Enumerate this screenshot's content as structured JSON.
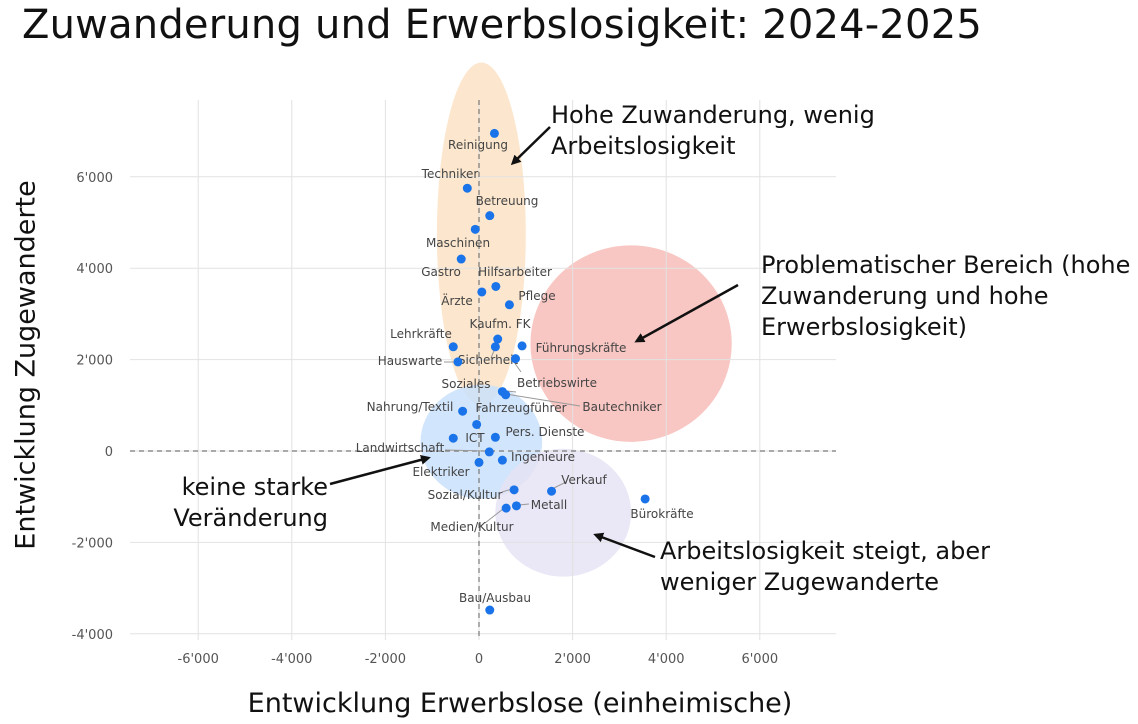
{
  "chart_data": {
    "type": "scatter",
    "title": "Zuwanderung und Erwerbslosigkeit: 2024-2025",
    "xlabel": "Entwicklung Erwerbslose (einheimische)",
    "ylabel": "Entwicklung Zugewanderte",
    "xlim": [
      -7500,
      7500
    ],
    "ylim": [
      -4300,
      7500
    ],
    "x_ticks": [
      -6000,
      -4000,
      -2000,
      0,
      2000,
      4000,
      6000
    ],
    "x_tick_labels": [
      "-6'000",
      "-4'000",
      "-2'000",
      "0",
      "2'000",
      "4'000",
      "6'000"
    ],
    "y_ticks": [
      -4000,
      -2000,
      0,
      2000,
      4000,
      6000
    ],
    "y_tick_labels": [
      "-4'000",
      "-2'000",
      "0",
      "2'000",
      "4'000",
      "6'000"
    ],
    "grid": true,
    "point_color": "#1a73e8",
    "points": [
      {
        "label": "Reinigung",
        "x": 330,
        "y": 6950
      },
      {
        "label": "Techniker",
        "x": -250,
        "y": 5750
      },
      {
        "label": "Betreuung",
        "x": 230,
        "y": 5150
      },
      {
        "label": "Maschinen",
        "x": -80,
        "y": 4850
      },
      {
        "label": "Gastro",
        "x": -380,
        "y": 4200
      },
      {
        "label": "Hilfsarbeiter",
        "x": 360,
        "y": 3600
      },
      {
        "label": "Ärzte",
        "x": 60,
        "y": 3480
      },
      {
        "label": "Pflege",
        "x": 650,
        "y": 3200
      },
      {
        "label": "Kaufm. FK",
        "x": 400,
        "y": 2450
      },
      {
        "label": "Lehrkräfte",
        "x": -550,
        "y": 2280
      },
      {
        "label": "Führungskräfte",
        "x": 920,
        "y": 2300
      },
      {
        "label": "Hauswarte",
        "x": -450,
        "y": 1950
      },
      {
        "label": "Sicherheit",
        "x": 350,
        "y": 2280
      },
      {
        "label": "Betriebswirte",
        "x": 780,
        "y": 2020
      },
      {
        "label": "Soziales",
        "x": 500,
        "y": 1300
      },
      {
        "label": "Bautechniker",
        "x": 570,
        "y": 1230
      },
      {
        "label": "Nahrung/Textil",
        "x": -350,
        "y": 870
      },
      {
        "label": "Fahrzeugführer",
        "x": -50,
        "y": 580
      },
      {
        "label": "Pers. Dienste",
        "x": 350,
        "y": 300
      },
      {
        "label": "ICT",
        "x": -550,
        "y": 280
      },
      {
        "label": "Landwirtschaft",
        "x": 220,
        "y": -20
      },
      {
        "label": "Ingenieure",
        "x": 500,
        "y": -200
      },
      {
        "label": "Elektriker",
        "x": 0,
        "y": -250
      },
      {
        "label": "Verkauf",
        "x": 1550,
        "y": -880
      },
      {
        "label": "Sozial/Kultur",
        "x": 750,
        "y": -850
      },
      {
        "label": "Bürokräfte",
        "x": 3550,
        "y": -1050
      },
      {
        "label": "Metall",
        "x": 800,
        "y": -1200
      },
      {
        "label": "Medien/Kultur",
        "x": 580,
        "y": -1250
      },
      {
        "label": "Bau/Ausbau",
        "x": 230,
        "y": -3480
      }
    ],
    "regions": [
      {
        "name": "Hohe Zuwanderung, wenig Arbeitslosigkeit",
        "color": "#fce3c5",
        "cx": 50,
        "cy": 4750,
        "rx": 950,
        "ry": 3750
      },
      {
        "name": "Problematischer Bereich (hohe Zuwanderung und hohe Erwerbslosigkeit)",
        "color": "#f7bdb8",
        "cx": 3250,
        "cy": 2350,
        "rx": 2150,
        "ry": 2150
      },
      {
        "name": "keine starke Veränderung",
        "color": "#c9e0fb",
        "cx": 50,
        "cy": 200,
        "rx": 1300,
        "ry": 1250
      },
      {
        "name": "Arbeitslosigkeit steigt, aber weniger Zugewanderte",
        "color": "#e6e3f4",
        "cx": 1800,
        "cy": -1350,
        "rx": 1450,
        "ry": 1400
      }
    ],
    "annotations": [
      {
        "text": "Hohe Zuwanderung, wenig\nArbeitslosigkeit"
      },
      {
        "text": "Problematischer Bereich (hohe\nZuwanderung und hohe\nErwerbslosigkeit)"
      },
      {
        "text": "keine starke\nVeränderung"
      },
      {
        "text": "Arbeitslosigkeit steigt, aber\nweniger Zugewanderte"
      }
    ]
  }
}
